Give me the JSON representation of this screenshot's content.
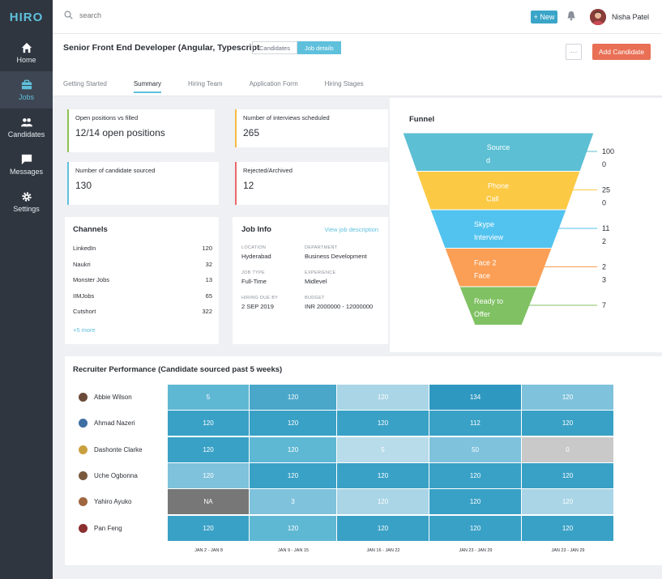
{
  "app": {
    "brand": "HIRO"
  },
  "sidebar": {
    "items": [
      {
        "label": "Home",
        "icon": "home-icon"
      },
      {
        "label": "Jobs",
        "icon": "briefcase-icon",
        "active": true
      },
      {
        "label": "Candidates",
        "icon": "people-icon"
      },
      {
        "label": "Messages",
        "icon": "chat-icon"
      },
      {
        "label": "Settings",
        "icon": "gear-icon"
      }
    ]
  },
  "topbar": {
    "search_placeholder": "search",
    "new_label": "+ New",
    "user_name": "Nisha Patel"
  },
  "job": {
    "title": "Senior Front End Developer (Angular, Typescript",
    "segments": [
      "Candidates",
      "Job details"
    ],
    "add_candidate": "Add Candidate",
    "more_label": "···",
    "tabs": [
      "Getting Started",
      "Summary",
      "Hiring Team",
      "Application Form",
      "Hiring Stages"
    ]
  },
  "stats": [
    {
      "label": "Open positions vs filled",
      "value": "12/14 open positions",
      "color": "#8cc152"
    },
    {
      "label": "Number of interviews scheduled",
      "value": "265",
      "color": "#f6bb42"
    },
    {
      "label": "Number of candidate sourced",
      "value": "130",
      "color": "#5fc0dc"
    },
    {
      "label": "Rejected/Archived",
      "value": "12",
      "color": "#e9686b"
    }
  ],
  "channels": {
    "title": "Channels",
    "rows": [
      {
        "name": "LinkedIn",
        "count": "120"
      },
      {
        "name": "Naukri",
        "count": "32"
      },
      {
        "name": "Monster Jobs",
        "count": "13"
      },
      {
        "name": "IIMJobs",
        "count": "65"
      },
      {
        "name": "Cutshort",
        "count": "322"
      }
    ],
    "more": "+5 more"
  },
  "job_info": {
    "title": "Job Info",
    "link": "View job description",
    "location_label": "LOCATION",
    "location": "Hyderabad",
    "department_label": "DEPARTMENT",
    "department": "Business Development",
    "jobtype_label": "JOB TYPE",
    "jobtype": "Full-Time",
    "experience_label": "EXPERIENCE",
    "experience": "Midlevel",
    "due_label": "HIRING DUE BY",
    "due": "2 SEP 2019",
    "budget_label": "BUDGET",
    "budget": "INR 2000000 - 12000000"
  },
  "funnel": {
    "title": "Funnel",
    "stages": [
      {
        "l1": "Source",
        "l2": "d",
        "v1": "100",
        "v2": "0",
        "color": "#5cbfd3"
      },
      {
        "l1": "Phone",
        "l2": "Call",
        "v1": "25",
        "v2": "0",
        "color": "#fcc945"
      },
      {
        "l1": "Skype",
        "l2": "Interview",
        "v1": "11",
        "v2": "2",
        "color": "#52c3ef"
      },
      {
        "l1": "Face 2",
        "l2": "Face",
        "v1": "2",
        "v2": "3",
        "color": "#fb9f56"
      },
      {
        "l1": "Ready to",
        "l2": "Offer",
        "v1": "7",
        "v2": "",
        "color": "#80c163"
      }
    ]
  },
  "performance": {
    "title": "Recruiter Performance (Candidate sourced past 5 weeks)",
    "weeks": [
      "JAN 2 - JAN 8",
      "JAN 9 - JAN 15",
      "JAN 16 - JAN 22",
      "JAN 23 - JAN 29",
      "JAN 23 - JAN 29"
    ],
    "rows": [
      {
        "name": "Abbie Wilson",
        "cells": [
          {
            "v": "5",
            "c": "#5fb8d3"
          },
          {
            "v": "120",
            "c": "#4aa7ca"
          },
          {
            "v": "120",
            "c": "#a9d5e6"
          },
          {
            "v": "134",
            "c": "#2f98c0"
          },
          {
            "v": "120",
            "c": "#7fc2dc"
          }
        ]
      },
      {
        "name": "Ahmad Nazeri",
        "cells": [
          {
            "v": "120",
            "c": "#3aa1c6"
          },
          {
            "v": "120",
            "c": "#3aa1c6"
          },
          {
            "v": "120",
            "c": "#3aa1c6"
          },
          {
            "v": "112",
            "c": "#3aa1c6"
          },
          {
            "v": "120",
            "c": "#3aa1c6"
          }
        ]
      },
      {
        "name": "Dashonte Clarke",
        "cells": [
          {
            "v": "120",
            "c": "#3aa1c6"
          },
          {
            "v": "120",
            "c": "#5fb8d3"
          },
          {
            "v": "5",
            "c": "#b8dcea"
          },
          {
            "v": "50",
            "c": "#7fc2dc"
          },
          {
            "v": "0",
            "c": "#c9c9c9"
          }
        ]
      },
      {
        "name": "Uche Ogbonna",
        "cells": [
          {
            "v": "120",
            "c": "#7fc2dc"
          },
          {
            "v": "120",
            "c": "#3aa1c6"
          },
          {
            "v": "120",
            "c": "#3aa1c6"
          },
          {
            "v": "120",
            "c": "#3aa1c6"
          },
          {
            "v": "120",
            "c": "#3aa1c6"
          }
        ]
      },
      {
        "name": "Yahiro Ayuko",
        "cells": [
          {
            "v": "NA",
            "c": "#777777"
          },
          {
            "v": "3",
            "c": "#7fc2dc"
          },
          {
            "v": "120",
            "c": "#a9d5e6"
          },
          {
            "v": "120",
            "c": "#3aa1c6"
          },
          {
            "v": "120",
            "c": "#a9d5e6"
          }
        ]
      },
      {
        "name": "Pan Feng",
        "cells": [
          {
            "v": "120",
            "c": "#3aa1c6"
          },
          {
            "v": "120",
            "c": "#5fb8d3"
          },
          {
            "v": "120",
            "c": "#3aa1c6"
          },
          {
            "v": "120",
            "c": "#3aa1c6"
          },
          {
            "v": "120",
            "c": "#3aa1c6"
          }
        ]
      }
    ],
    "avatar_colors": [
      "#6b4a3a",
      "#3f6fa3",
      "#c9a040",
      "#7a5a3f",
      "#a0663f",
      "#8b2f2f"
    ]
  }
}
